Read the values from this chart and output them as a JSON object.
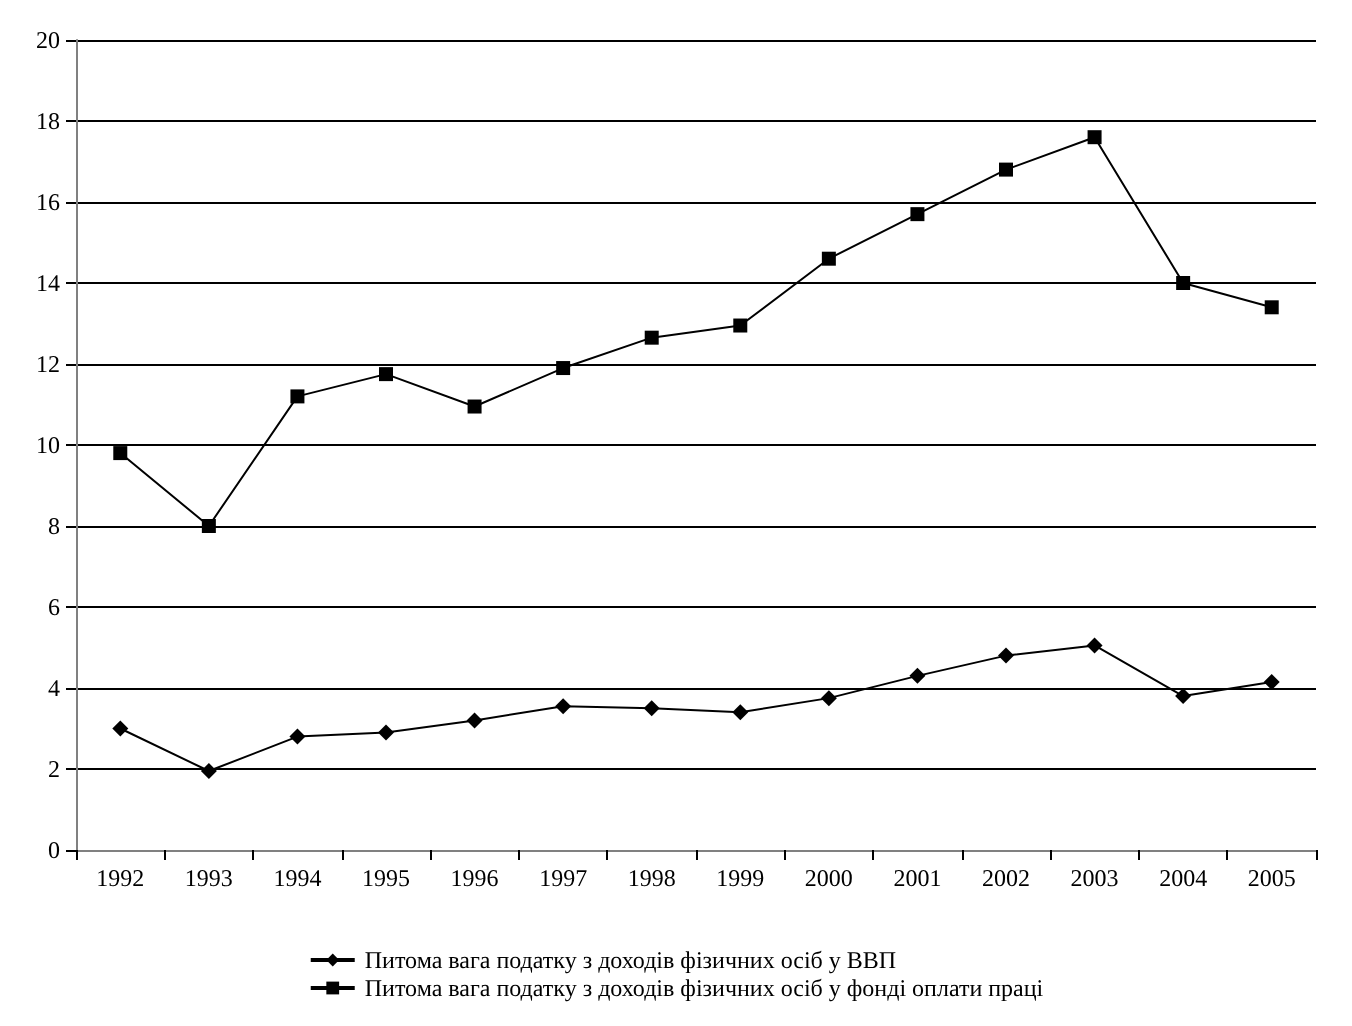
{
  "chart_data": {
    "type": "line",
    "categories": [
      "1992",
      "1993",
      "1994",
      "1995",
      "1996",
      "1997",
      "1998",
      "1999",
      "2000",
      "2001",
      "2002",
      "2003",
      "2004",
      "2005"
    ],
    "series": [
      {
        "name": "Питома вага податку з доходів фізичних осіб у ВВП",
        "color": "#000000",
        "marker": "diamond",
        "values": [
          3.0,
          1.95,
          2.8,
          2.9,
          3.2,
          3.55,
          3.5,
          3.4,
          3.75,
          4.3,
          4.8,
          5.05,
          3.8,
          4.15
        ]
      },
      {
        "name": "Питома вага податку з доходів фізичних осіб у фонді оплати праці",
        "color": "#000000",
        "marker": "square",
        "values": [
          9.8,
          8.0,
          11.2,
          11.75,
          10.95,
          11.9,
          12.65,
          12.95,
          14.6,
          15.7,
          16.8,
          17.6,
          14.0,
          13.4
        ]
      }
    ],
    "ylim": [
      0,
      20
    ],
    "yticks": [
      0,
      2,
      4,
      6,
      8,
      10,
      12,
      14,
      16,
      18,
      20
    ],
    "grid": "y",
    "legend": "bottom",
    "line_style": "solid"
  }
}
